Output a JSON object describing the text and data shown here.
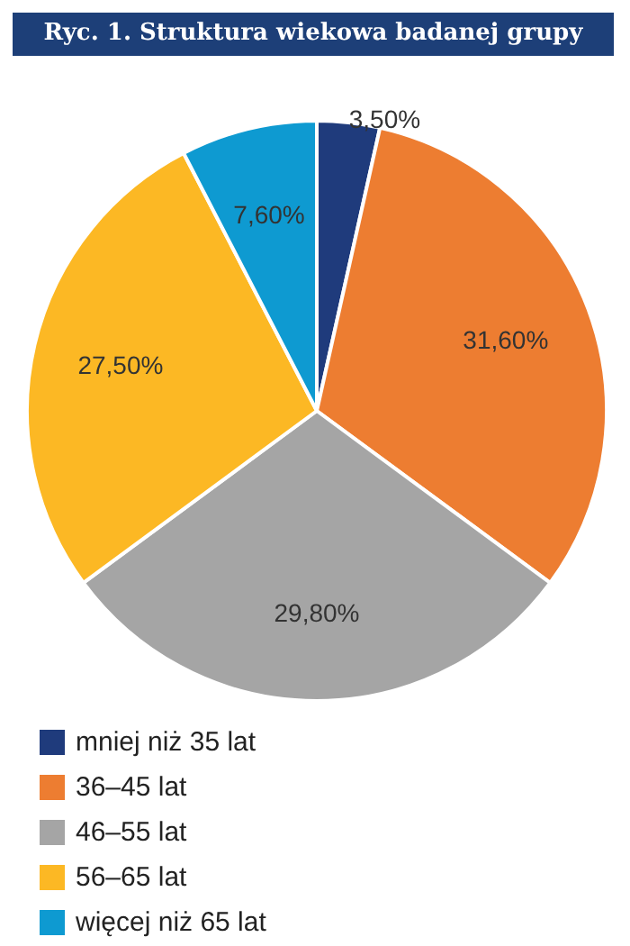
{
  "chart_data": {
    "type": "pie",
    "title": "Ryc. 1. Struktura wiekowa badanej grupy",
    "categories": [
      "mniej niż 35 lat",
      "36–45 lat",
      "46–55 lat",
      "56–65 lat",
      "więcej niż 65 lat"
    ],
    "values": [
      3.5,
      31.6,
      29.8,
      27.5,
      7.6
    ],
    "colors": [
      "#1f3b7c",
      "#ed7d31",
      "#a5a5a5",
      "#fcb824",
      "#0e9ad1"
    ],
    "value_labels": [
      "3,50%",
      "31,60%",
      "29,80%",
      "27,50%",
      "7,60%"
    ],
    "legend": "bottom left"
  }
}
